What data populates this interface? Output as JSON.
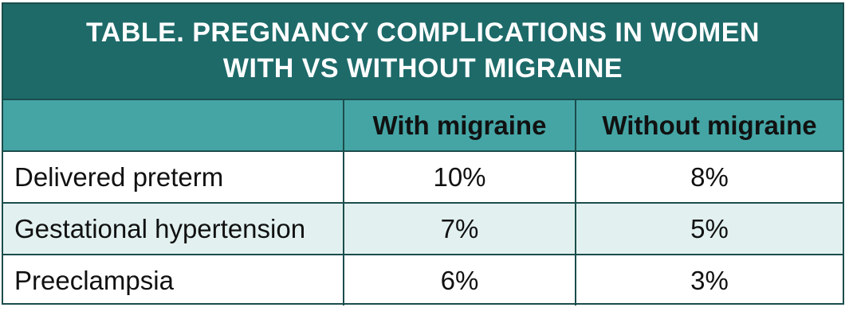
{
  "title": {
    "line1": "TABLE. PREGNANCY COMPLICATIONS IN WOMEN",
    "line2": "WITH VS WITHOUT MIGRAINE"
  },
  "columns": [
    "",
    "With migraine",
    "Without migraine"
  ],
  "rows": [
    {
      "label": "Delivered preterm",
      "with": "10%",
      "without": "8%"
    },
    {
      "label": "Gestational hypertension",
      "with": "7%",
      "without": "5%"
    },
    {
      "label": "Preeclampsia",
      "with": "6%",
      "without": "3%"
    }
  ],
  "colors": {
    "title_bg": "#1d6a69",
    "header_bg": "#45a5a5",
    "stripe_bg": "#e2f1f0",
    "border": "#1b4d4c"
  }
}
